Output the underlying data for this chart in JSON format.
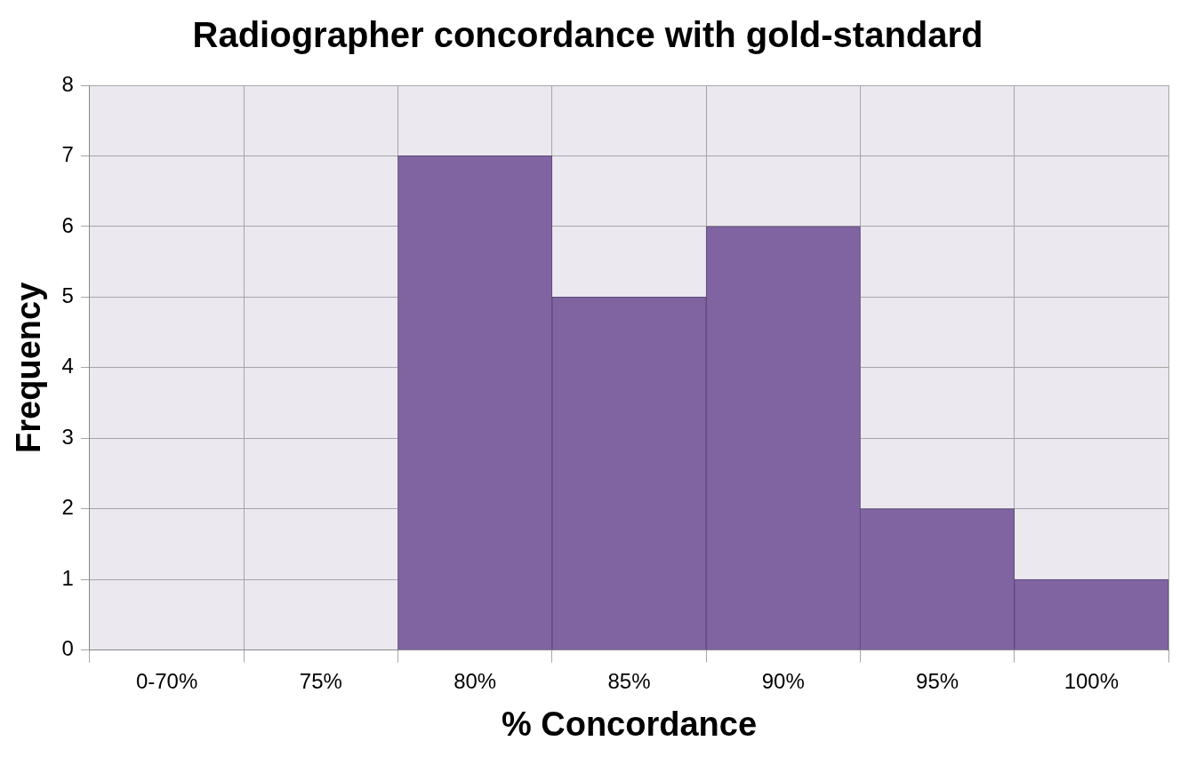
{
  "chart_data": {
    "type": "bar",
    "title": "Radiographer concordance with gold-standard",
    "xlabel": "% Concordance",
    "ylabel": "Frequency",
    "categories": [
      "0-70%",
      "75%",
      "80%",
      "85%",
      "90%",
      "95%",
      "100%"
    ],
    "values": [
      0,
      0,
      7,
      5,
      6,
      2,
      1
    ],
    "color": "#8064a2",
    "ylim": [
      0,
      8
    ],
    "yticks": [
      0,
      1,
      2,
      3,
      4,
      5,
      6,
      7,
      8
    ],
    "grid": true,
    "legend": false
  }
}
